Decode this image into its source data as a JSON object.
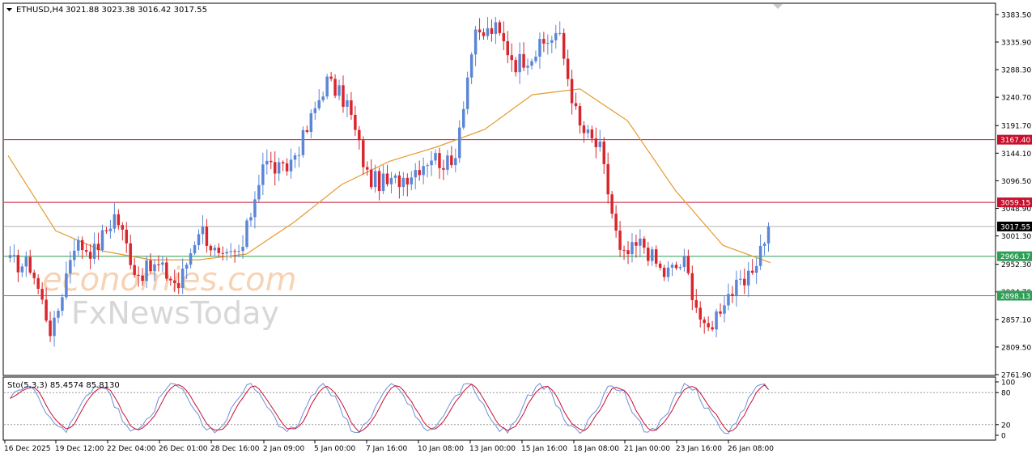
{
  "header": {
    "symbol": "ETHUSD,H4",
    "ohlc": "3021.88 3023.38 3016.42 3017.55"
  },
  "watermark": {
    "line1": "economies.com",
    "line2": "FxNewsToday"
  },
  "colors": {
    "bull_candle": "#5b86d6",
    "bear_candle": "#d9262e",
    "moving_average": "#e49b2f",
    "resistance_line": "#c8102e",
    "support_line": "#2e9e55",
    "current_price_line": "#b0b0b0",
    "stoch_main": "#6d8fd8",
    "stoch_signal": "#c8102e"
  },
  "price_axis": {
    "ticks": [
      "3383.50",
      "3335.90",
      "3288.30",
      "3240.70",
      "3191.70",
      "3144.10",
      "3096.50",
      "3048.90",
      "3001.30",
      "2952.30",
      "2904.70",
      "2857.10",
      "2809.50",
      "2761.90"
    ],
    "ylim": [
      2761.9,
      3401.5
    ]
  },
  "time_axis": {
    "labels": [
      "16 Dec 2025",
      "19 Dec 12:00",
      "22 Dec 04:00",
      "26 Dec 01:00",
      "28 Dec 16:00",
      "2 Jan 09:00",
      "5 Jan 00:00",
      "7 Jan 16:00",
      "10 Jan 08:00",
      "13 Jan 00:00",
      "15 Jan 16:00",
      "18 Jan 08:00",
      "21 Jan 00:00",
      "23 Jan 16:00",
      "26 Jan 08:00"
    ]
  },
  "levels": [
    {
      "label": "3167.40",
      "value": 3167.4,
      "kind": "resistance"
    },
    {
      "label": "3059.15",
      "value": 3059.15,
      "kind": "resistance"
    },
    {
      "label": "3017.55",
      "value": 3017.55,
      "kind": "current"
    },
    {
      "label": "2966.17",
      "value": 2966.17,
      "kind": "support"
    },
    {
      "label": "2898.13",
      "value": 2898.13,
      "kind": "support"
    }
  ],
  "stochastic": {
    "label": "Sto(5,3,3) 85.4574 85.8130",
    "ticks": [
      "100",
      "80",
      "20",
      "0"
    ],
    "levels": [
      80,
      20
    ]
  },
  "chart_data": {
    "type": "candlestick",
    "ylim": [
      2761.9,
      3401.5
    ],
    "series_anchors": [
      {
        "x": "16 Dec 2025",
        "close": 2955
      },
      {
        "x": "17 Dec",
        "close": 2950
      },
      {
        "x": "18 Dec",
        "close": 2830
      },
      {
        "x": "19 Dec 12:00",
        "close": 2990
      },
      {
        "x": "20 Dec",
        "close": 2975
      },
      {
        "x": "22 Dec 04:00",
        "close": 3040
      },
      {
        "x": "24 Dec",
        "close": 2935
      },
      {
        "x": "26 Dec 01:00",
        "close": 2950
      },
      {
        "x": "27 Dec",
        "close": 2915
      },
      {
        "x": "28 Dec 16:00",
        "close": 3020
      },
      {
        "x": "29 Dec",
        "close": 2955
      },
      {
        "x": "31 Dec",
        "close": 2975
      },
      {
        "x": "2 Jan 09:00",
        "close": 3130
      },
      {
        "x": "3 Jan",
        "close": 3110
      },
      {
        "x": "4 Jan",
        "close": 3175
      },
      {
        "x": "5 Jan 00:00",
        "close": 3270
      },
      {
        "x": "6 Jan",
        "close": 3230
      },
      {
        "x": "7 Jan 16:00",
        "close": 3100
      },
      {
        "x": "8 Jan",
        "close": 3090
      },
      {
        "x": "10 Jan 08:00",
        "close": 3110
      },
      {
        "x": "11 Jan",
        "close": 3140
      },
      {
        "x": "12 Jan",
        "close": 3120
      },
      {
        "x": "13 Jan 00:00",
        "close": 3340
      },
      {
        "x": "14 Jan",
        "close": 3360
      },
      {
        "x": "15 Jan 16:00",
        "close": 3300
      },
      {
        "x": "16 Jan",
        "close": 3320
      },
      {
        "x": "17 Jan",
        "close": 3355
      },
      {
        "x": "18 Jan 08:00",
        "close": 3190
      },
      {
        "x": "19 Jan",
        "close": 3150
      },
      {
        "x": "20 Jan",
        "close": 2960
      },
      {
        "x": "21 Jan 00:00",
        "close": 2990
      },
      {
        "x": "22 Jan",
        "close": 2935
      },
      {
        "x": "23 Jan 16:00",
        "close": 2955
      },
      {
        "x": "24 Jan",
        "close": 2830
      },
      {
        "x": "25 Jan",
        "close": 2900
      },
      {
        "x": "26 Jan 08:00",
        "close": 2920
      },
      {
        "x": "27 Jan",
        "close": 3017.55
      }
    ],
    "moving_average_anchors": [
      {
        "x": "16 Dec 2025",
        "value": 3140
      },
      {
        "x": "19 Dec 12:00",
        "value": 3010
      },
      {
        "x": "22 Dec 04:00",
        "value": 2975
      },
      {
        "x": "26 Dec 01:00",
        "value": 2960
      },
      {
        "x": "31 Dec",
        "value": 2960
      },
      {
        "x": "2 Jan 09:00",
        "value": 2970
      },
      {
        "x": "5 Jan 00:00",
        "value": 3025
      },
      {
        "x": "7 Jan 16:00",
        "value": 3090
      },
      {
        "x": "10 Jan 08:00",
        "value": 3130
      },
      {
        "x": "13 Jan 00:00",
        "value": 3155
      },
      {
        "x": "15 Jan 16:00",
        "value": 3185
      },
      {
        "x": "18 Jan 08:00",
        "value": 3245
      },
      {
        "x": "19 Jan",
        "value": 3255
      },
      {
        "x": "21 Jan 00:00",
        "value": 3200
      },
      {
        "x": "23 Jan 16:00",
        "value": 3080
      },
      {
        "x": "26 Jan 08:00",
        "value": 2985
      },
      {
        "x": "27 Jan",
        "value": 2955
      }
    ]
  }
}
